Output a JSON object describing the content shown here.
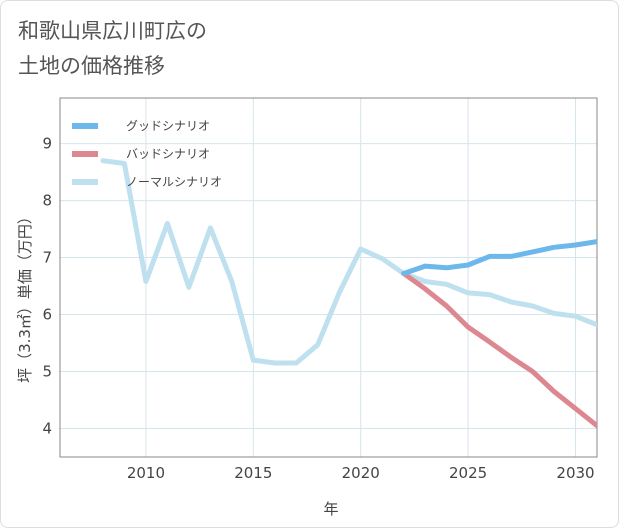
{
  "title": "和歌山県広川町広の\n土地の価格推移",
  "chart_data": {
    "type": "line",
    "xlabel": "年",
    "ylabel": "坪（3.3㎡）単価（万円）",
    "xlim": [
      2006,
      2031
    ],
    "ylim": [
      3.5,
      9.8
    ],
    "x_ticks": [
      2010,
      2015,
      2020,
      2025,
      2030
    ],
    "y_ticks": [
      4,
      5,
      6,
      7,
      8,
      9
    ],
    "grid": true,
    "legend_position": "top-left",
    "series": [
      {
        "name": "グッドシナリオ",
        "color": "#6cb7ec",
        "x": [
          2022,
          2023,
          2024,
          2025,
          2026,
          2027,
          2028,
          2029,
          2030,
          2031
        ],
        "y": [
          6.72,
          6.85,
          6.82,
          6.87,
          7.02,
          7.02,
          7.1,
          7.18,
          7.22,
          7.28
        ]
      },
      {
        "name": "バッドシナリオ",
        "color": "#dd8890",
        "x": [
          2022,
          2023,
          2024,
          2025,
          2026,
          2027,
          2028,
          2029,
          2030,
          2031
        ],
        "y": [
          6.72,
          6.45,
          6.15,
          5.78,
          5.52,
          5.25,
          5.0,
          4.65,
          4.35,
          4.05
        ]
      },
      {
        "name": "ノーマルシナリオ",
        "color": "#bfe0ee",
        "x": [
          2008,
          2009,
          2010,
          2011,
          2012,
          2013,
          2014,
          2015,
          2016,
          2017,
          2018,
          2019,
          2020,
          2021,
          2022,
          2023,
          2024,
          2025,
          2026,
          2027,
          2028,
          2029,
          2030,
          2031
        ],
        "y": [
          8.7,
          8.65,
          6.58,
          7.6,
          6.48,
          7.52,
          6.58,
          5.2,
          5.15,
          5.15,
          5.47,
          6.38,
          7.15,
          6.98,
          6.72,
          6.58,
          6.53,
          6.38,
          6.35,
          6.22,
          6.15,
          6.02,
          5.97,
          5.82
        ]
      }
    ]
  }
}
